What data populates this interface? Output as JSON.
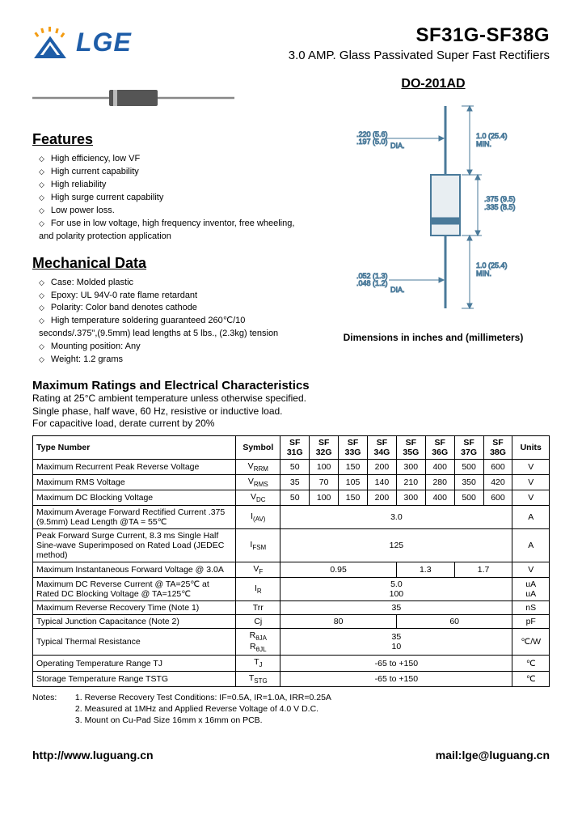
{
  "header": {
    "brand": "LGE",
    "title": "SF31G-SF38G",
    "subtitle": "3.0 AMP. Glass Passivated Super Fast Rectifiers"
  },
  "package": {
    "name": "DO-201AD",
    "dim_note": "Dimensions in inches and (millimeters)",
    "labels": {
      "d1": ".220 (5.6)",
      "d1b": ".197 (5.0)",
      "d1s": "DIA.",
      "l1": "1.0 (25.4)",
      "l1s": "MIN.",
      "body": ".375 (9.5)",
      "bodyb": ".335 (8.5)",
      "l2": "1.0 (25.4)",
      "l2s": "MIN.",
      "lead": ".052 (1.3)",
      "leadb": ".048 (1.2)",
      "leads": "DIA."
    }
  },
  "features": {
    "heading": "Features",
    "items": [
      "High efficiency, low VF",
      "High current capability",
      "High reliability",
      "High surge current capability",
      "Low power loss.",
      "For use in low voltage, high frequency inventor, free wheeling, and polarity protection application"
    ]
  },
  "mech": {
    "heading": "Mechanical Data",
    "items": [
      "Case: Molded plastic",
      "Epoxy: UL 94V-0 rate flame retardant",
      "Polarity: Color band denotes cathode",
      "High temperature soldering guaranteed 260℃/10 seconds/.375\",(9.5mm) lead lengths at 5 lbs., (2.3kg) tension",
      "Mounting position: Any",
      "Weight: 1.2 grams"
    ]
  },
  "elec": {
    "heading": "Maximum Ratings and Electrical Characteristics",
    "sub1": "Rating at 25°C ambient temperature unless otherwise specified.",
    "sub2": "Single phase, half wave, 60 Hz, resistive or inductive load.",
    "sub3": "For capacitive load, derate current by 20%"
  },
  "table": {
    "head_type": "Type Number",
    "head_symbol": "Symbol",
    "models": [
      "SF 31G",
      "SF 32G",
      "SF 33G",
      "SF 34G",
      "SF 35G",
      "SF 36G",
      "SF 37G",
      "SF 38G"
    ],
    "head_units": "Units",
    "rows": {
      "vrrm": {
        "param": "Maximum Recurrent Peak Reverse Voltage",
        "sym": "VRRM",
        "vals": [
          "50",
          "100",
          "150",
          "200",
          "300",
          "400",
          "500",
          "600"
        ],
        "unit": "V"
      },
      "vrms": {
        "param": "Maximum RMS Voltage",
        "sym": "VRMS",
        "vals": [
          "35",
          "70",
          "105",
          "140",
          "210",
          "280",
          "350",
          "420"
        ],
        "unit": "V"
      },
      "vdc": {
        "param": "Maximum DC Blocking Voltage",
        "sym": "VDC",
        "vals": [
          "50",
          "100",
          "150",
          "200",
          "300",
          "400",
          "500",
          "600"
        ],
        "unit": "V"
      },
      "iav": {
        "param": "Maximum Average Forward Rectified Current .375 (9.5mm) Lead Length @TA = 55℃",
        "sym": "I(AV)",
        "val": "3.0",
        "unit": "A"
      },
      "ifsm": {
        "param": "Peak Forward Surge Current, 8.3 ms Single Half Sine-wave Superimposed on Rated Load (JEDEC method)",
        "sym": "IFSM",
        "val": "125",
        "unit": "A"
      },
      "vf": {
        "param": "Maximum Instantaneous Forward Voltage @ 3.0A",
        "sym": "VF",
        "v1": "0.95",
        "v2": "1.3",
        "v3": "1.7",
        "unit": "V"
      },
      "ir": {
        "param": "Maximum DC Reverse Current @ TA=25℃ at Rated DC Blocking Voltage @ TA=125℃",
        "sym": "IR",
        "val1": "5.0",
        "val2": "100",
        "unit1": "uA",
        "unit2": "uA"
      },
      "trr": {
        "param": "Maximum Reverse Recovery Time (Note 1)",
        "sym": "Trr",
        "val": "35",
        "unit": "nS"
      },
      "cj": {
        "param": "Typical Junction Capacitance (Note 2)",
        "sym": "Cj",
        "v1": "80",
        "v2": "60",
        "unit": "pF"
      },
      "rth": {
        "param": "Typical Thermal Resistance",
        "sym1": "RθJA",
        "sym2": "RθJL",
        "val1": "35",
        "val2": "10",
        "unit": "℃/W"
      },
      "tj": {
        "param": "Operating Temperature Range TJ",
        "sym": "TJ",
        "val": "-65 to +150",
        "unit": "℃"
      },
      "tstg": {
        "param": "Storage Temperature Range TSTG",
        "sym": "TSTG",
        "val": "-65 to +150",
        "unit": "℃"
      }
    }
  },
  "notes": {
    "label": "Notes:",
    "n1": "1. Reverse Recovery Test Conditions: IF=0.5A, IR=1.0A, IRR=0.25A",
    "n2": "2. Measured at 1MHz and Applied Reverse Voltage of 4.0 V D.C.",
    "n3": "3. Mount on Cu-Pad Size 16mm x 16mm on PCB."
  },
  "footer": {
    "url": "http://www.luguang.cn",
    "mail": "mail:lge@luguang.cn"
  },
  "colors": {
    "logo_blue": "#1e5da8",
    "logo_orange": "#f39c12",
    "diagram": "#4a7a9a"
  }
}
